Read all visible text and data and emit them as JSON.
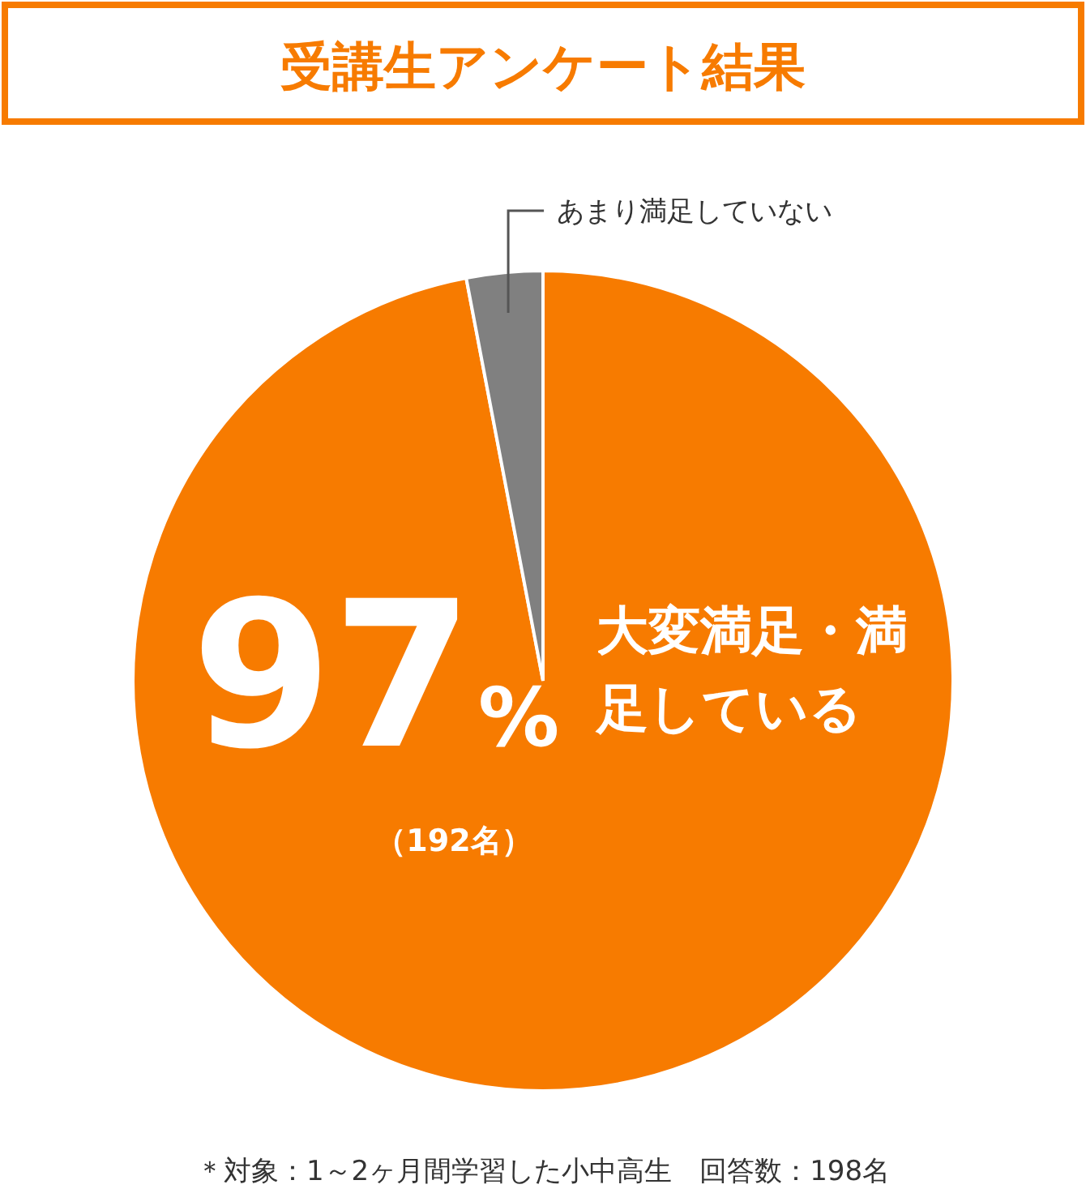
{
  "chart_data": {
    "type": "pie",
    "title": "受講生アンケート結果",
    "categories": [
      "大変満足・満足している",
      "あまり満足していない"
    ],
    "values": [
      97,
      3
    ],
    "colors": [
      "#f77b00",
      "#808080"
    ],
    "value_labels": [
      "97%",
      null
    ],
    "annotations": [
      "（192名）",
      "＊対象：1～2ヶ月間学習した小中高生　回答数：198名"
    ]
  }
}
